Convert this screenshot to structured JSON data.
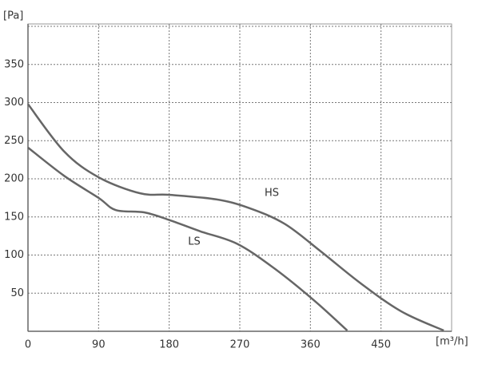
{
  "chart_data": {
    "type": "line",
    "y_label": "[Pa]",
    "x_label": "[m³/h]",
    "xlim": [
      0,
      540
    ],
    "ylim": [
      0,
      400
    ],
    "xticks": [
      0,
      90,
      180,
      270,
      360,
      450
    ],
    "yticks": [
      50,
      100,
      150,
      200,
      250,
      300,
      350
    ],
    "grid": true,
    "series": [
      {
        "name": "HS",
        "color": "#666666",
        "x": [
          0,
          46,
          90,
          143,
          180,
          240,
          281,
          327,
          373,
          424,
          476,
          530
        ],
        "values": [
          298,
          236,
          202,
          181,
          179,
          173,
          162,
          141,
          105,
          63,
          26,
          1
        ]
      },
      {
        "name": "LS",
        "color": "#666666",
        "x": [
          0,
          46,
          90,
          112,
          148,
          180,
          220,
          266,
          312,
          363,
          407
        ],
        "values": [
          241,
          204,
          175,
          159,
          156,
          146,
          131,
          115,
          84,
          42,
          1
        ]
      }
    ]
  }
}
